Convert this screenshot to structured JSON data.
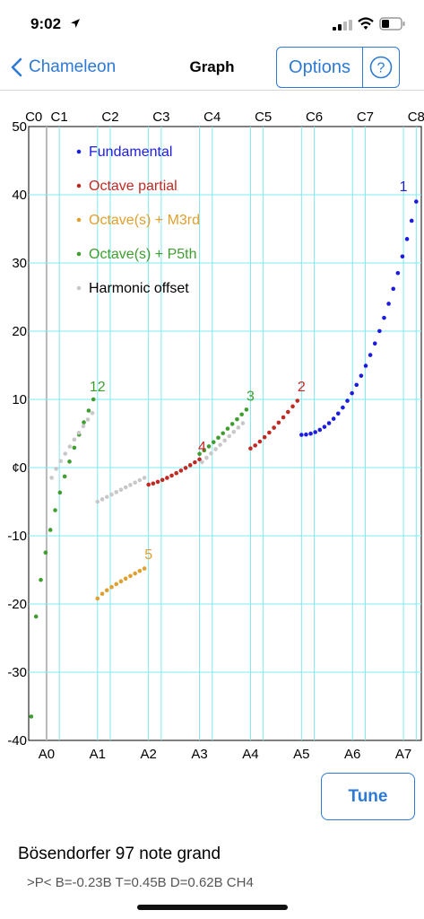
{
  "status_bar": {
    "time": "9:02"
  },
  "nav": {
    "back_label": "Chameleon",
    "title": "Graph",
    "options_label": "Options",
    "help_symbol": "?"
  },
  "chart_data": {
    "type": "scatter",
    "top_tick_labels": [
      "C0",
      "C1",
      "C2",
      "C3",
      "C4",
      "C5",
      "C6",
      "C7",
      "C8"
    ],
    "bottom_tick_labels": [
      "A0",
      "A1",
      "A2",
      "A3",
      "A4",
      "A5",
      "A6",
      "A7"
    ],
    "y_tick_labels": [
      "50",
      "40",
      "30",
      "20",
      "10",
      "¢0",
      "-10",
      "-20",
      "-30",
      "-40"
    ],
    "y_ticks": [
      50,
      40,
      30,
      20,
      10,
      0,
      -10,
      -20,
      -30,
      -40
    ],
    "ylim": [
      -40,
      50
    ],
    "xlim": [
      -0.35,
      7.35
    ],
    "grid": true,
    "legend_placement": "top-left",
    "legend": [
      {
        "label": "Fundamental",
        "color": "#1c1ce0"
      },
      {
        "label": "Octave partial",
        "color": "#c12a22"
      },
      {
        "label": "Octave(s) + M3rd",
        "color": "#e0a030"
      },
      {
        "label": "Octave(s) + P5th",
        "color": "#3f9e2f"
      },
      {
        "label": "Harmonic offset",
        "color": "#c8c8c8"
      }
    ],
    "series": [
      {
        "color": "#1c1ce0",
        "x_start": 5.0,
        "x_end": 7.25,
        "y_start": 4.8,
        "y_end": 39.0,
        "exp": 2.1
      },
      {
        "color": "#c12a22",
        "x_start": 4.0,
        "x_end": 4.92,
        "y_start": 2.8,
        "y_end": 9.8,
        "exp": 1.2
      },
      {
        "color": "#c12a22",
        "x_start": 2.0,
        "x_end": 3.0,
        "y_start": -2.5,
        "y_end": 1.2,
        "exp": 1.3
      },
      {
        "color": "#3f9e2f",
        "x_start": -0.3,
        "x_end": 0.92,
        "y_start": -36.5,
        "y_end": 10.0,
        "exp": 0.45
      },
      {
        "color": "#3f9e2f",
        "x_start": 3.0,
        "x_end": 3.92,
        "y_start": 2.0,
        "y_end": 8.5,
        "exp": 1.1
      },
      {
        "color": "#e0a030",
        "x_start": 1.0,
        "x_end": 1.92,
        "y_start": -19.2,
        "y_end": -14.8,
        "exp": 0.8
      },
      {
        "color": "#c8c8c8",
        "x_start": 1.0,
        "x_end": 1.92,
        "y_start": -5.0,
        "y_end": -1.5,
        "exp": 1.0
      },
      {
        "color": "#c8c8c8",
        "x_start": 0.1,
        "x_end": 0.9,
        "y_start": -1.5,
        "y_end": 8.0,
        "exp": 0.9
      },
      {
        "color": "#c8c8c8",
        "x_start": 3.05,
        "x_end": 3.85,
        "y_start": 0.8,
        "y_end": 6.5,
        "exp": 1.0
      }
    ],
    "annotations": [
      {
        "text": "1",
        "x": 7.0,
        "y": 40.5,
        "color": "#1c1ce0"
      },
      {
        "text": "2",
        "x": 5.0,
        "y": 11.2,
        "color": "#c12a22"
      },
      {
        "text": "12",
        "x": 1.0,
        "y": 11.2,
        "color": "#3f9e2f"
      },
      {
        "text": "3",
        "x": 4.0,
        "y": 9.8,
        "color": "#3f9e2f"
      },
      {
        "text": "4",
        "x": 3.05,
        "y": 2.4,
        "color": "#c12a22"
      },
      {
        "text": "5",
        "x": 2.0,
        "y": -13.4,
        "color": "#e0a030"
      }
    ]
  },
  "tune_label": "Tune",
  "device": {
    "name": "Bösendorfer 97 note grand",
    "params": ">P< B=-0.23B T=0.45B D=0.62B CH4"
  }
}
